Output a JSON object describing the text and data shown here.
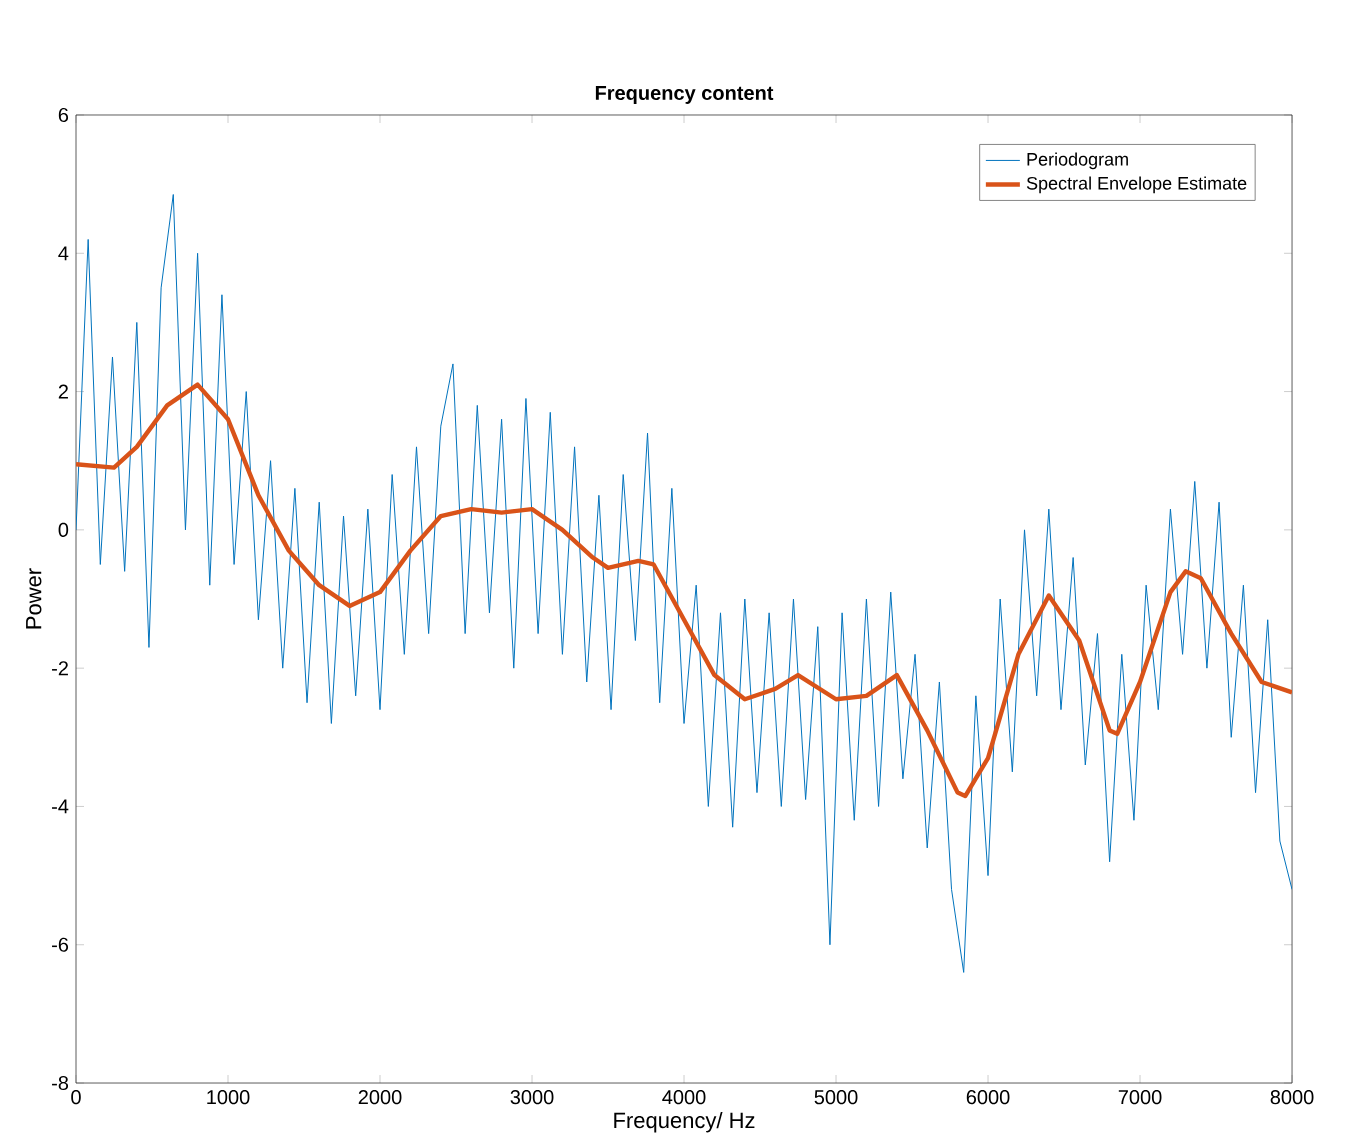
{
  "chart_data": {
    "type": "line",
    "title": "Frequency content",
    "xlabel": "Frequency/ Hz",
    "ylabel": "Power",
    "xlim": [
      0,
      8000
    ],
    "ylim": [
      -8,
      6
    ],
    "xticks": [
      0,
      1000,
      2000,
      3000,
      4000,
      5000,
      6000,
      7000,
      8000
    ],
    "yticks": [
      -8,
      -6,
      -4,
      -2,
      0,
      2,
      4,
      6
    ],
    "grid": false,
    "legend": "top right",
    "marker": "none",
    "line_style": "solid",
    "series": [
      {
        "name": "Periodogram",
        "color": "#0072bd",
        "x": [
          0,
          80,
          160,
          240,
          320,
          400,
          480,
          560,
          640,
          720,
          800,
          880,
          960,
          1040,
          1120,
          1200,
          1280,
          1360,
          1440,
          1520,
          1600,
          1680,
          1760,
          1840,
          1920,
          2000,
          2080,
          2160,
          2240,
          2320,
          2400,
          2480,
          2560,
          2640,
          2720,
          2800,
          2880,
          2960,
          3040,
          3120,
          3200,
          3280,
          3360,
          3440,
          3520,
          3600,
          3680,
          3760,
          3840,
          3920,
          4000,
          4080,
          4160,
          4240,
          4320,
          4400,
          4480,
          4560,
          4640,
          4720,
          4800,
          4880,
          4960,
          5040,
          5120,
          5200,
          5280,
          5360,
          5440,
          5520,
          5600,
          5680,
          5760,
          5840,
          5920,
          6000,
          6080,
          6160,
          6240,
          6320,
          6400,
          6480,
          6560,
          6640,
          6720,
          6800,
          6880,
          6960,
          7040,
          7120,
          7200,
          7280,
          7360,
          7440,
          7520,
          7600,
          7680,
          7760,
          7840,
          7920,
          8000
        ],
        "values": [
          0.0,
          4.2,
          -0.5,
          2.5,
          -0.6,
          3.0,
          -1.7,
          3.5,
          4.85,
          0.0,
          4.0,
          -0.8,
          3.4,
          -0.5,
          2.0,
          -1.3,
          1.0,
          -2.0,
          0.6,
          -2.5,
          0.4,
          -2.8,
          0.2,
          -2.4,
          0.3,
          -2.6,
          0.8,
          -1.8,
          1.2,
          -1.5,
          1.5,
          2.4,
          -1.5,
          1.8,
          -1.2,
          1.6,
          -2.0,
          1.9,
          -1.5,
          1.7,
          -1.8,
          1.2,
          -2.2,
          0.5,
          -2.6,
          0.8,
          -1.6,
          1.4,
          -2.5,
          0.6,
          -2.8,
          -0.8,
          -4.0,
          -1.2,
          -4.3,
          -1.0,
          -3.8,
          -1.2,
          -4.0,
          -1.0,
          -3.9,
          -1.4,
          -6.0,
          -1.2,
          -4.2,
          -1.0,
          -4.0,
          -0.9,
          -3.6,
          -1.8,
          -4.6,
          -2.2,
          -5.2,
          -6.4,
          -2.4,
          -5.0,
          -1.0,
          -3.5,
          0.0,
          -2.4,
          0.3,
          -2.6,
          -0.4,
          -3.4,
          -1.5,
          -4.8,
          -1.8,
          -4.2,
          -0.8,
          -2.6,
          0.3,
          -1.8,
          0.7,
          -2.0,
          0.4,
          -3.0,
          -0.8,
          -3.8,
          -1.3,
          -4.5,
          -5.2
        ]
      },
      {
        "name": "Spectral Envelope Estimate",
        "color": "#d95319",
        "x": [
          0,
          250,
          400,
          600,
          800,
          1000,
          1200,
          1400,
          1600,
          1800,
          2000,
          2200,
          2400,
          2600,
          2800,
          3000,
          3200,
          3400,
          3500,
          3700,
          3800,
          4000,
          4200,
          4400,
          4600,
          4750,
          5000,
          5200,
          5400,
          5600,
          5800,
          5850,
          6000,
          6200,
          6400,
          6600,
          6800,
          6850,
          7000,
          7200,
          7300,
          7400,
          7600,
          7800,
          8000
        ],
        "values": [
          0.95,
          0.9,
          1.2,
          1.8,
          2.1,
          1.6,
          0.5,
          -0.3,
          -0.8,
          -1.1,
          -0.9,
          -0.3,
          0.2,
          0.3,
          0.25,
          0.3,
          0.0,
          -0.4,
          -0.55,
          -0.45,
          -0.5,
          -1.3,
          -2.1,
          -2.45,
          -2.3,
          -2.1,
          -2.45,
          -2.4,
          -2.1,
          -2.9,
          -3.8,
          -3.85,
          -3.3,
          -1.8,
          -0.95,
          -1.6,
          -2.9,
          -2.95,
          -2.2,
          -0.9,
          -0.6,
          -0.7,
          -1.5,
          -2.2,
          -2.35
        ]
      }
    ]
  }
}
